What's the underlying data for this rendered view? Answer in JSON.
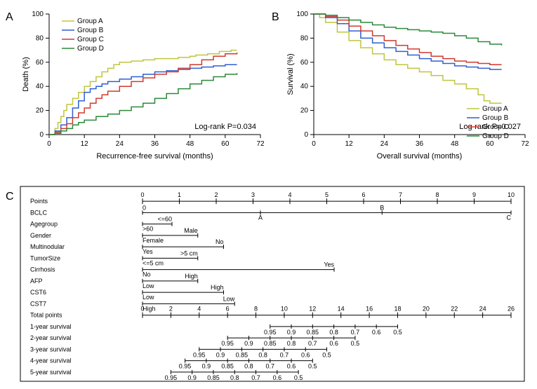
{
  "panelA": {
    "label": "A",
    "x_label": "Recurrence-free survival (months)",
    "y_label": "Death (%)",
    "pvalue": "Log-rank P=0.034",
    "xlim": [
      0,
      72
    ],
    "ylim": [
      0,
      100
    ],
    "xticks": [
      0,
      12,
      24,
      36,
      48,
      60,
      72
    ],
    "yticks": [
      0,
      20,
      40,
      60,
      80,
      100
    ],
    "legend": [
      "Group A",
      "Group B",
      "Group C",
      "Group D"
    ],
    "colors": [
      "#c0c63e",
      "#2f5fd1",
      "#d13a2f",
      "#2a8a3a"
    ],
    "groupA_x": [
      0,
      2,
      3,
      4,
      5,
      6,
      8,
      10,
      12,
      14,
      16,
      18,
      20,
      22,
      24,
      28,
      32,
      36,
      40,
      44,
      48,
      50,
      54,
      58,
      62,
      64
    ],
    "groupA_y": [
      0,
      5,
      10,
      15,
      20,
      25,
      30,
      35,
      40,
      44,
      48,
      52,
      55,
      58,
      60,
      61,
      62,
      63,
      63,
      64,
      65,
      66,
      67,
      69,
      70,
      70
    ],
    "groupB_x": [
      0,
      2,
      4,
      6,
      8,
      10,
      12,
      14,
      16,
      18,
      20,
      24,
      28,
      32,
      36,
      40,
      44,
      48,
      52,
      56,
      60,
      64
    ],
    "groupB_y": [
      0,
      3,
      8,
      14,
      22,
      28,
      35,
      38,
      40,
      42,
      44,
      46,
      48,
      50,
      52,
      53,
      54,
      55,
      56,
      57,
      58,
      58
    ],
    "groupC_x": [
      0,
      2,
      4,
      6,
      8,
      10,
      12,
      14,
      16,
      18,
      20,
      24,
      28,
      32,
      36,
      40,
      44,
      48,
      52,
      56,
      60,
      64
    ],
    "groupC_y": [
      0,
      2,
      5,
      9,
      14,
      18,
      22,
      26,
      30,
      33,
      36,
      40,
      44,
      47,
      50,
      52,
      55,
      58,
      62,
      65,
      67,
      68
    ],
    "groupD_x": [
      0,
      2,
      4,
      6,
      8,
      10,
      12,
      16,
      20,
      24,
      28,
      32,
      36,
      40,
      44,
      48,
      52,
      56,
      60,
      64
    ],
    "groupD_y": [
      0,
      1,
      3,
      5,
      8,
      10,
      12,
      15,
      17,
      20,
      23,
      26,
      30,
      34,
      38,
      42,
      45,
      48,
      50,
      51
    ]
  },
  "panelB": {
    "label": "B",
    "x_label": "Overall survival (months)",
    "y_label": "Survival (%)",
    "pvalue": "Log-rank P=0.027",
    "xlim": [
      0,
      72
    ],
    "ylim": [
      0,
      100
    ],
    "xticks": [
      0,
      12,
      24,
      36,
      48,
      60,
      72
    ],
    "yticks": [
      0,
      20,
      40,
      60,
      80,
      100
    ],
    "legend": [
      "Group A",
      "Group B",
      "Group C",
      "Group D"
    ],
    "colors": [
      "#c0c63e",
      "#2f5fd1",
      "#d13a2f",
      "#2a8a3a"
    ],
    "groupA_x": [
      0,
      2,
      4,
      8,
      12,
      16,
      20,
      24,
      28,
      32,
      36,
      40,
      44,
      48,
      52,
      56,
      58,
      60,
      64
    ],
    "groupA_y": [
      100,
      97,
      93,
      85,
      78,
      72,
      67,
      62,
      58,
      55,
      52,
      49,
      45,
      42,
      38,
      33,
      28,
      26,
      26
    ],
    "groupB_x": [
      0,
      4,
      8,
      12,
      16,
      20,
      24,
      28,
      32,
      36,
      40,
      44,
      48,
      52,
      56,
      60,
      64
    ],
    "groupB_y": [
      100,
      97,
      92,
      86,
      80,
      76,
      72,
      69,
      66,
      63,
      61,
      59,
      57,
      56,
      55,
      54,
      54
    ],
    "groupC_x": [
      0,
      4,
      8,
      12,
      16,
      20,
      24,
      28,
      32,
      36,
      40,
      44,
      48,
      52,
      56,
      60,
      64
    ],
    "groupC_y": [
      100,
      98,
      95,
      90,
      86,
      82,
      78,
      74,
      71,
      68,
      65,
      63,
      61,
      60,
      59,
      58,
      58
    ],
    "groupD_x": [
      0,
      4,
      8,
      12,
      16,
      20,
      24,
      28,
      32,
      36,
      40,
      44,
      48,
      52,
      56,
      60,
      64
    ],
    "groupD_y": [
      100,
      99,
      97,
      95,
      93,
      91,
      89,
      88,
      87,
      86,
      85,
      84,
      82,
      80,
      77,
      75,
      74
    ]
  },
  "panelC": {
    "label": "C",
    "rows": [
      {
        "name": "Points",
        "type": "axis",
        "min": 0,
        "max": 10,
        "ticks": [
          0,
          1,
          2,
          3,
          4,
          5,
          6,
          7,
          8,
          9,
          10
        ]
      },
      {
        "name": "BCLC",
        "type": "cat",
        "positions": [
          {
            "label": "0",
            "at": 0
          },
          {
            "label": "A",
            "at": 3.2
          },
          {
            "label": "B",
            "at": 6.5
          },
          {
            "label": "C",
            "at": 10
          }
        ]
      },
      {
        "name": "Agegroup",
        "type": "cat",
        "positions": [
          {
            "label": "<=60",
            "at": 0.8
          },
          {
            "label": ">60",
            "at": 0
          }
        ]
      },
      {
        "name": "Gender",
        "type": "cat",
        "positions": [
          {
            "label": "Male",
            "at": 1.5
          },
          {
            "label": "Female",
            "at": 0
          }
        ]
      },
      {
        "name": "Multinodular",
        "type": "cat",
        "positions": [
          {
            "label": "No",
            "at": 2.2
          },
          {
            "label": "Yes",
            "at": 0
          }
        ]
      },
      {
        "name": "TumorSize",
        "type": "cat",
        "positions": [
          {
            "label": ">5 cm",
            "at": 1.5
          },
          {
            "label": "<=5 cm",
            "at": 0
          }
        ]
      },
      {
        "name": "Cirrhosis",
        "type": "cat",
        "positions": [
          {
            "label": "Yes",
            "at": 5.2
          },
          {
            "label": "No",
            "at": 0
          }
        ]
      },
      {
        "name": "AFP",
        "type": "cat",
        "positions": [
          {
            "label": "High",
            "at": 1.5
          },
          {
            "label": "Low",
            "at": 0
          }
        ]
      },
      {
        "name": "CST6",
        "type": "cat",
        "positions": [
          {
            "label": "High",
            "at": 2.2
          },
          {
            "label": "Low",
            "at": 0
          }
        ]
      },
      {
        "name": "CST7",
        "type": "cat",
        "positions": [
          {
            "label": "Low",
            "at": 2.5
          },
          {
            "label": "High",
            "at": 0
          }
        ]
      },
      {
        "name": "Total points",
        "type": "axis",
        "min": 0,
        "max": 26,
        "ticks": [
          0,
          2,
          4,
          6,
          8,
          10,
          12,
          14,
          16,
          18,
          20,
          22,
          24,
          26
        ]
      },
      {
        "name": "1-year survival",
        "type": "surv",
        "low": 0.5,
        "high": 0.95,
        "tp_low": 18,
        "tp_high": 9,
        "labels": [
          "0.95",
          "0.9",
          "0.85",
          "0.8",
          "0.7",
          "0.6",
          "0.5"
        ]
      },
      {
        "name": "2-year survival",
        "type": "surv",
        "low": 0.5,
        "high": 0.95,
        "tp_low": 15,
        "tp_high": 6,
        "labels": [
          "0.95",
          "0.9",
          "0.85",
          "0.8",
          "0.7",
          "0.6",
          "0.5"
        ]
      },
      {
        "name": "3-year survival",
        "type": "surv",
        "low": 0.5,
        "high": 0.95,
        "tp_low": 13,
        "tp_high": 4,
        "labels": [
          "0.95",
          "0.9",
          "0.85",
          "0.8",
          "0.7",
          "0.6",
          "0.5"
        ]
      },
      {
        "name": "4-year survival",
        "type": "surv",
        "low": 0.5,
        "high": 0.95,
        "tp_low": 12,
        "tp_high": 3,
        "labels": [
          "0.95",
          "0.9",
          "0.85",
          "0.8",
          "0.7",
          "0.6",
          "0.5"
        ]
      },
      {
        "name": "5-year survival",
        "type": "surv",
        "low": 0.5,
        "high": 0.95,
        "tp_low": 11,
        "tp_high": 2,
        "labels": [
          "0.95",
          "0.9",
          "0.85",
          "0.8",
          "0.7",
          "0.6",
          "0.5"
        ]
      }
    ]
  }
}
